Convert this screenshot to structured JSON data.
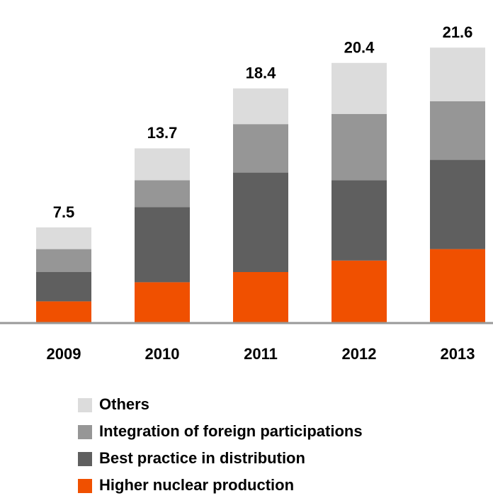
{
  "chart_data": {
    "type": "stacked_bar",
    "categories": [
      "2009",
      "2010",
      "2011",
      "2012",
      "2013"
    ],
    "series": [
      {
        "name": "Higher nuclear production",
        "color": "#f05000",
        "values": [
          1.7,
          3.2,
          4.0,
          4.9,
          5.8
        ]
      },
      {
        "name": "Best practice in distribution",
        "color": "#5f5f5f",
        "values": [
          2.3,
          5.9,
          7.8,
          6.3,
          7.0
        ]
      },
      {
        "name": "Integration of foreign participations",
        "color": "#969696",
        "values": [
          1.8,
          2.1,
          3.8,
          5.2,
          4.6
        ]
      },
      {
        "name": "Others",
        "color": "#dcdcdc",
        "values": [
          1.7,
          2.5,
          2.8,
          4.0,
          4.2
        ]
      }
    ],
    "totals": [
      7.5,
      13.7,
      18.4,
      20.4,
      21.6
    ]
  }
}
